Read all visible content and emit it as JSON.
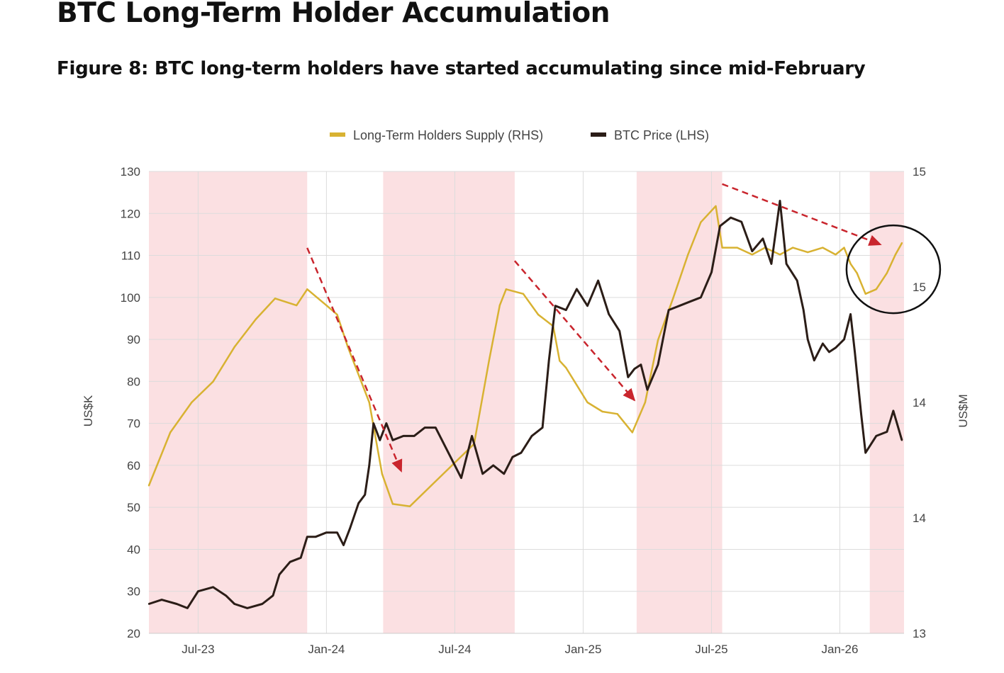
{
  "title": "BTC Long-Term Holder Accumulation",
  "subtitle": "Figure 8: BTC long-term holders have started accumulating since mid-February",
  "chart_data": {
    "type": "line",
    "x_unit": "months since Jan-2023",
    "xlim": [
      3.7,
      39.0
    ],
    "x_ticks": [
      {
        "value": 6,
        "label": "Jul-23"
      },
      {
        "value": 12,
        "label": "Jan-24"
      },
      {
        "value": 18,
        "label": "Jul-24"
      },
      {
        "value": 24,
        "label": "Jan-25"
      },
      {
        "value": 30,
        "label": "Jul-25"
      },
      {
        "value": 36,
        "label": "Jan-26"
      }
    ],
    "ylabel_left": "US$K",
    "ylabel_right": "US$M",
    "ylim_left": [
      20,
      130
    ],
    "y_ticks_left": [
      "20",
      "30",
      "40",
      "50",
      "60",
      "70",
      "80",
      "90",
      "100",
      "110",
      "120",
      "130"
    ],
    "ylim_right": [
      13,
      15
    ],
    "y_ticks_right": [
      {
        "value": 13,
        "label": "13"
      },
      {
        "value": 13.5,
        "label": "14"
      },
      {
        "value": 14,
        "label": "14"
      },
      {
        "value": 14.5,
        "label": "15"
      },
      {
        "value": 15,
        "label": "15"
      }
    ],
    "grid": true,
    "legend_position": "top-center",
    "colors": {
      "lth": "#d8b232",
      "btc": "#2b1d17",
      "shade": "#fbe0e2",
      "arrow": "#c9252d",
      "grid": "#dcdcdc"
    },
    "series": [
      {
        "name": "Long-Term Holders Supply (RHS)",
        "axis": "right",
        "color_key": "lth",
        "x": [
          3.7,
          4.7,
          5.7,
          6.7,
          7.7,
          8.7,
          9.6,
          10.6,
          11.1,
          12.0,
          12.5,
          13.0,
          14.0,
          14.6,
          15.1,
          15.9,
          16.9,
          17.9,
          18.9,
          19.6,
          20.1,
          20.4,
          21.2,
          21.9,
          22.6,
          22.9,
          23.2,
          23.6,
          24.2,
          24.9,
          25.6,
          26.3,
          26.9,
          27.5,
          28.2,
          28.9,
          29.5,
          30.2,
          30.5,
          31.2,
          31.9,
          32.5,
          33.2,
          33.8,
          34.5,
          35.2,
          35.8,
          36.2,
          36.5,
          36.8,
          37.2,
          37.7,
          38.2,
          38.6,
          38.9
        ],
        "values": [
          13.64,
          13.87,
          14.0,
          14.09,
          14.24,
          14.36,
          14.45,
          14.42,
          14.49,
          14.42,
          14.38,
          14.24,
          14.0,
          13.69,
          13.56,
          13.55,
          13.64,
          13.73,
          13.82,
          14.18,
          14.42,
          14.49,
          14.47,
          14.38,
          14.33,
          14.18,
          14.15,
          14.09,
          14.0,
          13.96,
          13.95,
          13.87,
          14.0,
          14.27,
          14.45,
          14.64,
          14.78,
          14.85,
          14.67,
          14.67,
          14.64,
          14.67,
          14.64,
          14.67,
          14.65,
          14.67,
          14.64,
          14.67,
          14.6,
          14.56,
          14.47,
          14.49,
          14.56,
          14.64,
          14.69
        ]
      },
      {
        "name": "BTC Price (LHS)",
        "axis": "left",
        "color_key": "btc",
        "x": [
          3.7,
          4.3,
          5.0,
          5.5,
          6.0,
          6.7,
          7.3,
          7.7,
          8.3,
          9.0,
          9.5,
          9.8,
          10.3,
          10.8,
          11.1,
          11.5,
          12.0,
          12.5,
          12.8,
          13.1,
          13.5,
          13.8,
          14.0,
          14.2,
          14.5,
          14.8,
          15.1,
          15.6,
          16.1,
          16.6,
          17.1,
          17.6,
          18.3,
          18.8,
          19.3,
          19.8,
          20.3,
          20.7,
          21.1,
          21.6,
          22.1,
          22.4,
          22.7,
          23.2,
          23.7,
          24.2,
          24.7,
          25.2,
          25.7,
          26.1,
          26.4,
          26.7,
          27.0,
          27.5,
          28.0,
          28.5,
          29.0,
          29.5,
          30.0,
          30.4,
          30.9,
          31.4,
          31.9,
          32.4,
          32.8,
          33.2,
          33.5,
          34.0,
          34.3,
          34.5,
          34.8,
          35.2,
          35.5,
          35.8,
          36.2,
          36.5,
          36.7,
          37.0,
          37.2,
          37.7,
          38.2,
          38.5,
          38.9
        ],
        "values": [
          27,
          28,
          27,
          26,
          30,
          31,
          29,
          27,
          26,
          27,
          29,
          34,
          37,
          38,
          43,
          43,
          44,
          44,
          41,
          45,
          51,
          53,
          60,
          70,
          66,
          70,
          66,
          67,
          67,
          69,
          69,
          64,
          57,
          67,
          58,
          60,
          58,
          62,
          63,
          67,
          69,
          85,
          98,
          97,
          102,
          98,
          104,
          96,
          92,
          81,
          83,
          84,
          78,
          84,
          97,
          98,
          99,
          100,
          106,
          117,
          119,
          118,
          111,
          114,
          108,
          123,
          108,
          104,
          97,
          90,
          85,
          89,
          87,
          88,
          90,
          96,
          87,
          72,
          63,
          67,
          68,
          73,
          66
        ]
      }
    ],
    "shaded_periods": [
      [
        3.7,
        11.1
      ],
      [
        14.65,
        20.8
      ],
      [
        26.5,
        30.5
      ],
      [
        37.4,
        39.0
      ]
    ],
    "annotations": {
      "arrows_lhs_units": [
        {
          "from": [
            11.1,
            111.8
          ],
          "to": [
            15.5,
            58.6
          ]
        },
        {
          "from": [
            20.8,
            108.7
          ],
          "to": [
            26.4,
            75.5
          ]
        },
        {
          "from": [
            30.5,
            127.0
          ],
          "to": [
            37.9,
            112.6
          ]
        }
      ],
      "circle_center_lhs_units": [
        38.5,
        106.7
      ]
    }
  }
}
